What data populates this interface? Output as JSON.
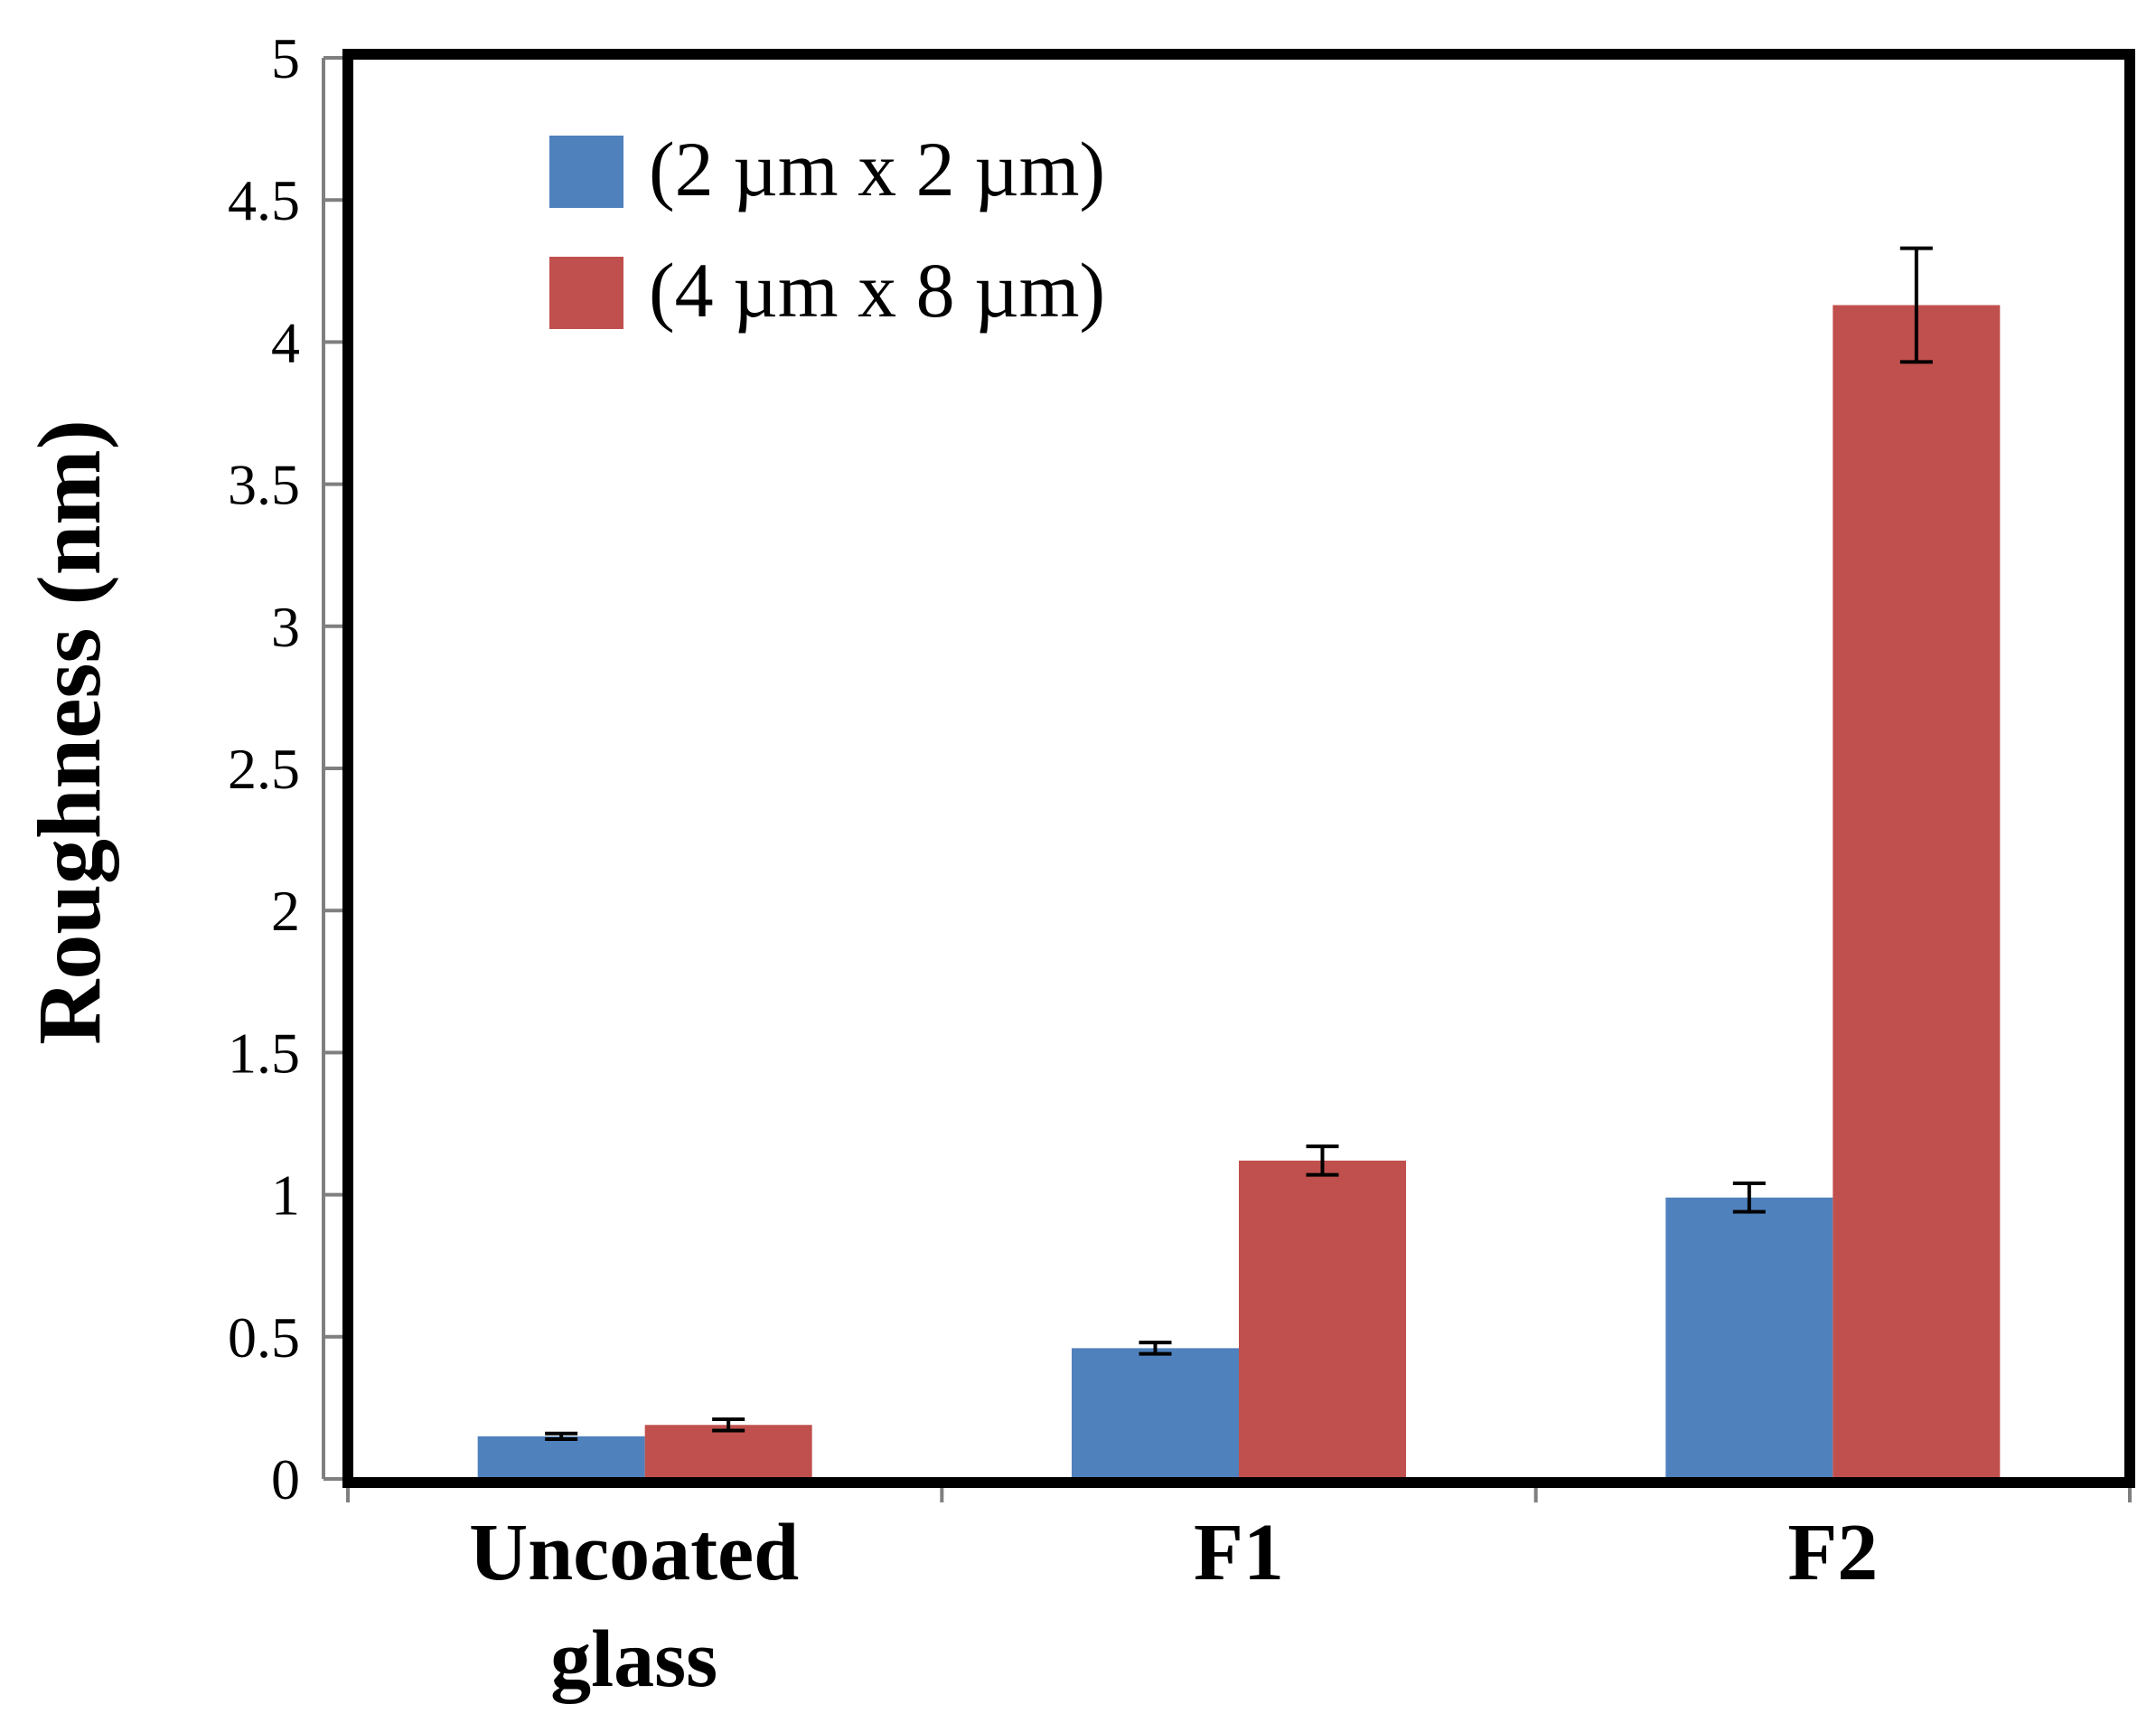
{
  "chart_data": {
    "type": "bar",
    "title": "",
    "xlabel": "",
    "ylabel": "Roughness (nm)",
    "ylim": [
      0,
      5
    ],
    "yticks": [
      "0",
      "0.5",
      "1",
      "1.5",
      "2",
      "2.5",
      "3",
      "3.5",
      "4",
      "4.5",
      "5"
    ],
    "grid": false,
    "legend_position": "top-left",
    "categories": [
      [
        "Uncoated",
        "glass"
      ],
      [
        "F1"
      ],
      [
        "F2"
      ]
    ],
    "series": [
      {
        "name": "(2 µm x 2 µm)",
        "color": "#4F81BD",
        "values": [
          0.15,
          0.46,
          0.99
        ],
        "errors": [
          0.01,
          0.02,
          0.05
        ]
      },
      {
        "name": "(4 µm x 8 µm)",
        "color": "#C0504D",
        "values": [
          0.19,
          1.12,
          4.13
        ],
        "errors": [
          0.02,
          0.05,
          0.2
        ]
      }
    ]
  }
}
